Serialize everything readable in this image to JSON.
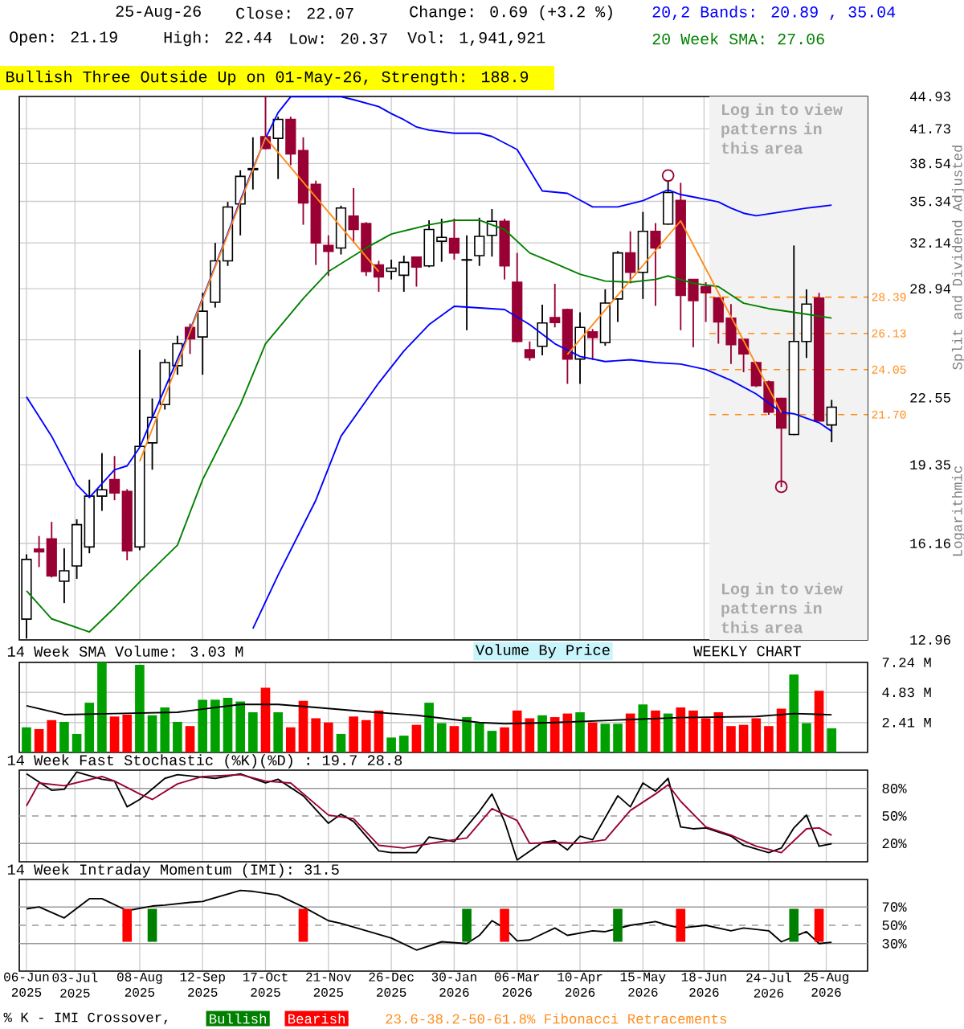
{
  "chart_data": [
    {
      "type": "candlestick",
      "title": "Bullish Three Outside Up on 01-May-26, Strength: 188.9",
      "annotations": [
        "25-Aug-26",
        "Close: 22.07",
        "Change: 0.69 (+3.2 %)",
        "Open: 21.19",
        "High: 22.44",
        "Low: 20.37",
        "Vol: 1,941,921",
        "20,2 Bands: 20.89 , 35.04",
        "20 Week SMA: 27.06",
        "Split and Dividend Adjusted",
        "Logarithmic"
      ],
      "x": [
        "2025-06-06",
        "2025-06-13",
        "2025-06-20",
        "2025-06-27",
        "2025-07-04",
        "2025-07-11",
        "2025-07-18",
        "2025-07-25",
        "2025-08-01",
        "2025-08-08",
        "2025-08-15",
        "2025-08-22",
        "2025-08-29",
        "2025-09-05",
        "2025-09-12",
        "2025-09-19",
        "2025-09-26",
        "2025-10-03",
        "2025-10-10",
        "2025-10-17",
        "2025-10-24",
        "2025-10-31",
        "2025-11-07",
        "2025-11-14",
        "2025-11-21",
        "2025-11-28",
        "2025-12-05",
        "2025-12-12",
        "2025-12-19",
        "2025-12-26",
        "2026-01-02",
        "2026-01-09",
        "2026-01-16",
        "2026-01-23",
        "2026-01-30",
        "2026-02-06",
        "2026-02-13",
        "2026-02-20",
        "2026-02-27",
        "2026-03-06",
        "2026-03-13",
        "2026-03-20",
        "2026-03-27",
        "2026-04-03",
        "2026-04-10",
        "2026-04-17",
        "2026-04-24",
        "2026-05-01",
        "2026-05-08",
        "2026-05-15",
        "2026-05-22",
        "2026-05-29",
        "2026-06-05",
        "2026-06-12",
        "2026-06-19",
        "2026-06-26",
        "2026-07-03",
        "2026-07-10",
        "2026-07-17",
        "2026-07-24",
        "2026-07-31",
        "2026-08-07",
        "2026-08-14",
        "2026-08-21",
        "2026-08-28"
      ],
      "ohlc": [
        [
          13.59,
          15.76,
          13.0,
          15.58
        ],
        [
          15.95,
          16.44,
          15.31,
          15.85
        ],
        [
          16.33,
          16.98,
          14.95,
          15.0
        ],
        [
          14.82,
          15.98,
          14.1,
          15.18
        ],
        [
          15.35,
          17.08,
          14.9,
          16.87
        ],
        [
          16.03,
          18.7,
          15.8,
          18.01
        ],
        [
          18.01,
          19.87,
          17.41,
          18.27
        ],
        [
          18.7,
          19.74,
          17.84,
          18.14
        ],
        [
          18.2,
          18.3,
          15.55,
          15.89
        ],
        [
          16.03,
          25.17,
          15.91,
          20.18
        ],
        [
          20.34,
          22.52,
          19.13,
          21.56
        ],
        [
          22.2,
          24.64,
          21.95,
          24.44
        ],
        [
          24.27,
          25.99,
          23.77,
          25.52
        ],
        [
          26.49,
          26.72,
          24.93,
          25.81
        ],
        [
          25.92,
          28.67,
          23.77,
          27.49
        ],
        [
          28.06,
          32.14,
          27.72,
          30.85
        ],
        [
          30.85,
          35.3,
          30.49,
          34.89
        ],
        [
          35.13,
          37.96,
          32.7,
          37.43
        ],
        [
          38.0,
          40.92,
          36.32,
          38.1
        ],
        [
          40.97,
          44.9,
          39.8,
          39.9
        ],
        [
          40.82,
          42.9,
          37.2,
          42.64
        ],
        [
          42.64,
          42.9,
          38.4,
          39.4
        ],
        [
          39.7,
          40.92,
          33.5,
          35.22
        ],
        [
          36.75,
          37.06,
          30.56,
          32.14
        ],
        [
          31.95,
          32.7,
          29.8,
          31.52
        ],
        [
          31.77,
          35.0,
          31.3,
          34.81
        ],
        [
          34.18,
          36.44,
          32.14,
          33.14
        ],
        [
          33.6,
          33.7,
          29.8,
          30.1
        ],
        [
          30.56,
          30.85,
          28.74,
          29.74
        ],
        [
          30.12,
          30.93,
          29.56,
          30.34
        ],
        [
          29.85,
          31.22,
          28.74,
          30.74
        ],
        [
          31.11,
          31.15,
          29.08,
          30.41
        ],
        [
          30.49,
          33.85,
          30.4,
          33.14
        ],
        [
          32.26,
          33.97,
          30.78,
          32.55
        ],
        [
          32.47,
          33.97,
          30.93,
          31.41
        ],
        [
          30.9,
          32.7,
          26.32,
          30.93
        ],
        [
          31.22,
          34.05,
          30.49,
          32.63
        ],
        [
          32.7,
          34.73,
          31.15,
          33.77
        ],
        [
          33.77,
          33.97,
          29.56,
          30.49
        ],
        [
          29.38,
          31.41,
          25.6,
          25.65
        ],
        [
          25.17,
          25.65,
          24.55,
          24.73
        ],
        [
          25.37,
          27.9,
          24.85,
          26.76
        ],
        [
          27.09,
          29.27,
          26.49,
          26.79
        ],
        [
          27.59,
          27.65,
          23.28,
          24.64
        ],
        [
          24.64,
          27.42,
          23.28,
          26.49
        ],
        [
          26.22,
          26.39,
          24.59,
          25.88
        ],
        [
          25.58,
          28.9,
          25.4,
          28.01
        ],
        [
          28.27,
          31.55,
          26.82,
          31.41
        ],
        [
          31.41,
          33.0,
          29.3,
          30.05
        ],
        [
          30.05,
          34.5,
          28.27,
          33.0
        ],
        [
          33.0,
          33.64,
          27.83,
          31.77
        ],
        [
          33.55,
          37.06,
          33.5,
          36.07
        ],
        [
          35.42,
          36.88,
          26.32,
          28.5
        ],
        [
          29.56,
          29.6,
          25.31,
          28.17
        ],
        [
          29.08,
          29.38,
          26.82,
          28.67
        ],
        [
          28.33,
          28.4,
          25.52,
          26.82
        ],
        [
          27.05,
          27.94,
          24.36,
          25.46
        ],
        [
          25.78,
          25.8,
          23.91,
          24.93
        ],
        [
          24.44,
          24.5,
          23.11,
          23.19
        ],
        [
          23.39,
          23.45,
          21.69,
          21.82
        ],
        [
          22.52,
          22.55,
          18.38,
          21.04
        ],
        [
          20.73,
          31.95,
          20.7,
          25.65
        ],
        [
          25.65,
          28.9,
          24.7,
          27.94
        ],
        [
          28.33,
          28.67,
          21.38,
          21.38
        ],
        [
          21.19,
          22.44,
          20.37,
          22.07
        ]
      ],
      "series": [
        {
          "type": "line",
          "color": "#0000ff",
          "x": [
            "2025-06-06",
            "2025-06-20",
            "2025-07-04",
            "2025-07-11",
            "2025-07-25",
            "2025-08-01",
            "2025-08-08",
            "2025-08-22",
            "2025-09-05",
            "2025-09-19",
            "2025-10-03",
            "2025-10-10",
            "2025-10-17",
            "2025-10-24",
            "2025-10-31",
            "2025-11-07",
            "2025-11-14",
            "2025-11-21",
            "2025-11-28",
            "2025-12-05",
            "2025-12-19",
            "2025-12-26",
            "2026-01-02",
            "2026-01-09",
            "2026-01-16",
            "2026-01-30",
            "2026-02-13",
            "2026-02-20",
            "2026-03-06",
            "2026-03-20",
            "2026-04-03",
            "2026-04-17",
            "2026-05-01",
            "2026-05-15",
            "2026-05-29",
            "2026-06-05",
            "2026-06-12",
            "2026-06-26",
            "2026-07-03",
            "2026-07-10",
            "2026-07-17",
            "2026-07-31",
            "2026-08-14",
            "2026-08-28"
          ],
          "values": [
            22.6,
            20.65,
            18.49,
            17.95,
            19.13,
            19.3,
            20.13,
            23.04,
            26.32,
            30.49,
            35.42,
            38.1,
            40.82,
            43.3,
            44.9,
            44.9,
            44.9,
            44.9,
            44.9,
            44.6,
            43.9,
            43.2,
            42.6,
            41.9,
            41.6,
            41.3,
            41.3,
            41.0,
            39.8,
            36.2,
            36.0,
            34.9,
            34.9,
            35.4,
            36.3,
            35.9,
            35.7,
            35.3,
            34.8,
            34.4,
            34.2,
            34.5,
            34.8,
            35.04
          ]
        },
        {
          "type": "line",
          "color": "#0000ff",
          "x": [
            "2025-10-10",
            "2025-10-24",
            "2025-11-14",
            "2025-11-28",
            "2025-12-19",
            "2026-01-02",
            "2026-01-16",
            "2026-01-30",
            "2026-02-13",
            "2026-02-27",
            "2026-03-13",
            "2026-03-27",
            "2026-04-10",
            "2026-04-24",
            "2026-05-08",
            "2026-05-22",
            "2026-06-05",
            "2026-06-19",
            "2026-07-03",
            "2026-07-17",
            "2026-07-31",
            "2026-08-07",
            "2026-08-21",
            "2026-08-28"
          ],
          "values": [
            13.3,
            15.03,
            17.84,
            20.65,
            23.33,
            25.1,
            26.66,
            27.8,
            27.7,
            27.6,
            26.66,
            25.52,
            24.79,
            24.5,
            24.6,
            24.44,
            24.36,
            24.06,
            23.47,
            22.75,
            21.82,
            21.74,
            21.3,
            20.89
          ]
        },
        {
          "type": "line",
          "color": "#008000",
          "x": [
            "2025-06-06",
            "2025-06-20",
            "2025-07-11",
            "2025-07-25",
            "2025-08-08",
            "2025-08-29",
            "2025-09-12",
            "2025-10-03",
            "2025-10-17",
            "2025-11-07",
            "2025-11-21",
            "2025-12-12",
            "2025-12-26",
            "2026-01-16",
            "2026-01-30",
            "2026-02-13",
            "2026-02-27",
            "2026-03-13",
            "2026-03-27",
            "2026-04-10",
            "2026-04-24",
            "2026-05-08",
            "2026-05-22",
            "2026-05-29",
            "2026-06-12",
            "2026-06-26",
            "2026-07-10",
            "2026-07-24",
            "2026-08-07",
            "2026-08-28"
          ],
          "values": [
            14.5,
            13.6,
            13.2,
            13.95,
            14.8,
            16.1,
            18.7,
            22.2,
            25.52,
            28.3,
            30.1,
            31.77,
            32.8,
            33.5,
            33.85,
            33.85,
            33.14,
            31.41,
            30.67,
            29.92,
            29.45,
            29.38,
            29.56,
            29.8,
            29.3,
            29.08,
            28.0,
            27.65,
            27.42,
            27.06
          ]
        },
        {
          "type": "line",
          "color": "#ff8c1a",
          "x": [
            "2025-08-08",
            "2025-10-17",
            "2025-12-19",
            "2026-02-13",
            "2026-04-03",
            "2026-06-05",
            "2026-07-31"
          ],
          "values": [
            19.5,
            40.9,
            30.1,
            null,
            24.9,
            33.8,
            21.8
          ]
        },
        {
          "type": "scatter",
          "color": "#990033",
          "marker": "circle",
          "x": [
            "2026-05-29",
            "2026-07-31"
          ],
          "values": [
            37.5,
            18.4
          ]
        }
      ],
      "xlim": [
        "2025-06-02",
        "2026-09-17"
      ],
      "ylim": [
        12.96,
        44.93
      ],
      "log": true,
      "grid": true,
      "tick_labels": "y",
      "xticks": [
        {
          "value": "2025-06-06",
          "label": null
        },
        {
          "value": "2025-07-03",
          "label": null
        },
        {
          "value": "2025-08-08",
          "label": null
        },
        {
          "value": "2025-09-12",
          "label": null
        },
        {
          "value": "2025-10-17",
          "label": null
        },
        {
          "value": "2025-11-21",
          "label": null
        },
        {
          "value": "2025-12-26",
          "label": null
        },
        {
          "value": "2026-01-30",
          "label": null
        },
        {
          "value": "2026-03-06",
          "label": null
        },
        {
          "value": "2026-04-10",
          "label": null
        },
        {
          "value": "2026-05-15",
          "label": null
        },
        {
          "value": "2026-06-18",
          "label": null
        },
        {
          "value": "2026-07-24",
          "label": null
        },
        {
          "value": "2026-08-25",
          "label": null
        }
      ],
      "yticks": [
        12.96,
        16.16,
        19.35,
        22.55,
        {
          "value": 25.75,
          "label": null
        },
        28.94,
        32.14,
        35.34,
        38.54,
        41.73,
        44.93
      ],
      "ref_lines": [
        {
          "axis": "y",
          "value": 28.39,
          "label": "28.39",
          "color": "#ff8c1a",
          "line_style": "dashed"
        },
        {
          "axis": "y",
          "value": 26.13,
          "label": "26.13",
          "color": "#ff8c1a",
          "line_style": "dashed"
        },
        {
          "axis": "y",
          "value": 24.05,
          "label": "24.05",
          "color": "#ff8c1a",
          "line_style": "dashed"
        },
        {
          "axis": "y",
          "value": 21.7,
          "label": "21.70",
          "color": "#ff8c1a",
          "line_style": "dashed"
        }
      ],
      "bands": [
        {
          "axis": "x",
          "from": "2026-06-21",
          "to": "2026-09-17",
          "label": "Log in to view patterns in this area",
          "color": "#f2f2f2"
        }
      ]
    },
    {
      "type": "bar",
      "title": "14 Week SMA Volume: 3.03 M",
      "annotations": [
        "Volume By Price",
        "WEEKLY CHART"
      ],
      "x": [
        "2025-06-06",
        "2025-06-13",
        "2025-06-20",
        "2025-06-27",
        "2025-07-04",
        "2025-07-11",
        "2025-07-18",
        "2025-07-25",
        "2025-08-01",
        "2025-08-08",
        "2025-08-15",
        "2025-08-22",
        "2025-08-29",
        "2025-09-05",
        "2025-09-12",
        "2025-09-19",
        "2025-09-26",
        "2025-10-03",
        "2025-10-10",
        "2025-10-17",
        "2025-10-24",
        "2025-10-31",
        "2025-11-07",
        "2025-11-14",
        "2025-11-21",
        "2025-11-28",
        "2025-12-05",
        "2025-12-12",
        "2025-12-19",
        "2025-12-26",
        "2026-01-02",
        "2026-01-09",
        "2026-01-16",
        "2026-01-23",
        "2026-01-30",
        "2026-02-06",
        "2026-02-13",
        "2026-02-20",
        "2026-02-27",
        "2026-03-06",
        "2026-03-13",
        "2026-03-20",
        "2026-03-27",
        "2026-04-03",
        "2026-04-10",
        "2026-04-17",
        "2026-04-24",
        "2026-05-01",
        "2026-05-08",
        "2026-05-15",
        "2026-05-22",
        "2026-05-29",
        "2026-06-05",
        "2026-06-12",
        "2026-06-19",
        "2026-06-26",
        "2026-07-03",
        "2026-07-10",
        "2026-07-17",
        "2026-07-24",
        "2026-07-31",
        "2026-08-07",
        "2026-08-14",
        "2026-08-21",
        "2026-08-28"
      ],
      "series": [
        {
          "type": "bar",
          "values": [
            2.02,
            1.88,
            2.6,
            2.46,
            1.49,
            4.0,
            7.24,
            2.89,
            3.04,
            7.04,
            2.99,
            3.62,
            2.46,
            2.12,
            4.24,
            4.24,
            4.39,
            4.1,
            3.23,
            5.21,
            3.23,
            2.02,
            4.15,
            2.75,
            2.41,
            1.49,
            2.89,
            2.6,
            3.37,
            1.2,
            1.35,
            2.22,
            4.0,
            2.36,
            2.12,
            2.84,
            2.36,
            1.74,
            2.02,
            3.37,
            2.75,
            2.99,
            2.84,
            3.13,
            3.23,
            2.41,
            2.31,
            2.31,
            3.13,
            3.86,
            3.37,
            3.13,
            3.62,
            3.37,
            2.75,
            3.23,
            2.12,
            2.22,
            2.75,
            2.12,
            3.52,
            6.27,
            2.36,
            4.96,
            1.94
          ],
          "colors": [
            "#00a000",
            "#ff0000",
            "#ff0000",
            "#00a000",
            "#00a000",
            "#00a000",
            "#00a000",
            "#ff0000",
            "#ff0000",
            "#00a000",
            "#00a000",
            "#00a000",
            "#00a000",
            "#ff0000",
            "#00a000",
            "#00a000",
            "#00a000",
            "#00a000",
            "#00a000",
            "#ff0000",
            "#00a000",
            "#ff0000",
            "#ff0000",
            "#ff0000",
            "#ff0000",
            "#00a000",
            "#ff0000",
            "#ff0000",
            "#ff0000",
            "#00a000",
            "#00a000",
            "#ff0000",
            "#00a000",
            "#00a000",
            "#ff0000",
            "#00a000",
            "#00a000",
            "#00a000",
            "#ff0000",
            "#ff0000",
            "#ff0000",
            "#00a000",
            "#ff0000",
            "#ff0000",
            "#00a000",
            "#ff0000",
            "#00a000",
            "#00a000",
            "#ff0000",
            "#00a000",
            "#ff0000",
            "#00a000",
            "#ff0000",
            "#ff0000",
            "#ff0000",
            "#ff0000",
            "#ff0000",
            "#ff0000",
            "#ff0000",
            "#ff0000",
            "#ff0000",
            "#00a000",
            "#00a000",
            "#ff0000",
            "#00a000"
          ]
        },
        {
          "type": "line",
          "color": "#000000",
          "x": [
            "2025-06-06",
            "2025-06-27",
            "2025-07-25",
            "2025-08-29",
            "2025-10-03",
            "2025-10-24",
            "2025-11-14",
            "2025-12-12",
            "2026-01-09",
            "2026-02-13",
            "2026-02-27",
            "2026-03-27",
            "2026-05-08",
            "2026-06-05",
            "2026-07-17",
            "2026-08-07",
            "2026-08-28"
          ],
          "values": [
            3.76,
            3.04,
            3.13,
            3.23,
            3.86,
            3.86,
            3.62,
            3.28,
            2.99,
            2.41,
            2.31,
            2.41,
            2.65,
            2.8,
            2.89,
            3.13,
            3.03
          ]
        }
      ],
      "xlim": [
        "2025-06-02",
        "2026-09-17"
      ],
      "ylim": [
        0,
        7.24
      ],
      "grid": true,
      "tick_labels": "y",
      "xticks": [
        {
          "value": "2025-06-06",
          "label": null
        },
        {
          "value": "2025-07-03",
          "label": null
        },
        {
          "value": "2025-08-08",
          "label": null
        },
        {
          "value": "2025-09-12",
          "label": null
        },
        {
          "value": "2025-10-17",
          "label": null
        },
        {
          "value": "2025-11-21",
          "label": null
        },
        {
          "value": "2025-12-26",
          "label": null
        },
        {
          "value": "2026-01-30",
          "label": null
        },
        {
          "value": "2026-03-06",
          "label": null
        },
        {
          "value": "2026-04-10",
          "label": null
        },
        {
          "value": "2026-05-15",
          "label": null
        },
        {
          "value": "2026-06-18",
          "label": null
        },
        {
          "value": "2026-07-24",
          "label": null
        },
        {
          "value": "2026-08-25",
          "label": null
        }
      ],
      "yticks": [
        {
          "value": 2.41,
          "label": "2.41 M"
        },
        {
          "value": 4.83,
          "label": "4.83 M"
        },
        {
          "value": 7.24,
          "label": "7.24 M"
        }
      ]
    },
    {
      "type": "line",
      "title": "14 Week Fast Stochastic (%K)(%D) : 19.7 28.8",
      "series": [
        {
          "color": "#000000",
          "x": [
            "2025-06-06",
            "2025-06-20",
            "2025-06-27",
            "2025-07-04",
            "2025-07-18",
            "2025-07-25",
            "2025-08-01",
            "2025-08-08",
            "2025-08-22",
            "2025-08-29",
            "2025-09-19",
            "2025-10-03",
            "2025-10-17",
            "2025-10-24",
            "2025-11-07",
            "2025-11-21",
            "2025-11-28",
            "2025-12-05",
            "2025-12-19",
            "2025-12-26",
            "2026-01-09",
            "2026-01-16",
            "2026-01-30",
            "2026-02-13",
            "2026-02-20",
            "2026-02-27",
            "2026-03-06",
            "2026-03-20",
            "2026-03-27",
            "2026-04-03",
            "2026-04-10",
            "2026-04-17",
            "2026-05-01",
            "2026-05-08",
            "2026-05-15",
            "2026-05-22",
            "2026-05-29",
            "2026-06-05",
            "2026-06-12",
            "2026-06-19",
            "2026-07-03",
            "2026-07-10",
            "2026-07-24",
            "2026-07-31",
            "2026-08-07",
            "2026-08-14",
            "2026-08-21",
            "2026-08-28"
          ],
          "values": [
            96,
            78,
            79,
            98,
            90,
            88,
            60,
            68,
            91,
            95,
            91,
            96,
            86,
            90,
            72,
            42,
            52,
            44,
            12,
            10,
            10,
            27,
            22,
            55,
            74,
            44,
            2,
            21,
            23,
            13,
            28,
            24,
            72,
            60,
            86,
            77,
            91,
            38,
            36,
            37,
            28,
            18,
            10,
            15,
            37,
            51,
            17,
            19.7
          ]
        },
        {
          "color": "#990033",
          "x": [
            "2025-06-06",
            "2025-06-13",
            "2025-06-27",
            "2025-07-18",
            "2025-07-25",
            "2025-08-08",
            "2025-08-15",
            "2025-08-29",
            "2025-09-12",
            "2025-10-03",
            "2025-10-17",
            "2025-10-31",
            "2025-11-21",
            "2025-12-05",
            "2025-12-19",
            "2026-01-02",
            "2026-01-23",
            "2026-02-06",
            "2026-02-20",
            "2026-03-06",
            "2026-03-13",
            "2026-03-27",
            "2026-04-10",
            "2026-04-24",
            "2026-05-08",
            "2026-05-22",
            "2026-05-29",
            "2026-06-05",
            "2026-06-19",
            "2026-07-03",
            "2026-07-17",
            "2026-07-31",
            "2026-08-14",
            "2026-08-21",
            "2026-08-28"
          ],
          "values": [
            61,
            86,
            83,
            93,
            88,
            74,
            68,
            85,
            93,
            95,
            88,
            86,
            51,
            47,
            18,
            15,
            22,
            26,
            58,
            45,
            20,
            21,
            20,
            24,
            56,
            74,
            84,
            66,
            38,
            29,
            17,
            10,
            36,
            37,
            28.8
          ]
        }
      ],
      "xlim": [
        "2025-06-02",
        "2026-09-17"
      ],
      "ylim": [
        0,
        100
      ],
      "grid": "x",
      "tick_labels": "y",
      "xticks": [
        {
          "value": "2025-06-06",
          "label": null
        },
        {
          "value": "2025-07-03",
          "label": null
        },
        {
          "value": "2025-08-08",
          "label": null
        },
        {
          "value": "2025-09-12",
          "label": null
        },
        {
          "value": "2025-10-17",
          "label": null
        },
        {
          "value": "2025-11-21",
          "label": null
        },
        {
          "value": "2025-12-26",
          "label": null
        },
        {
          "value": "2026-01-30",
          "label": null
        },
        {
          "value": "2026-03-06",
          "label": null
        },
        {
          "value": "2026-04-10",
          "label": null
        },
        {
          "value": "2026-05-15",
          "label": null
        },
        {
          "value": "2026-06-18",
          "label": null
        },
        {
          "value": "2026-07-24",
          "label": null
        },
        {
          "value": "2026-08-25",
          "label": null
        }
      ],
      "yticks": [
        {
          "value": 20,
          "label": "20%"
        },
        {
          "value": 50,
          "label": "50%"
        },
        {
          "value": 80,
          "label": "80%"
        }
      ],
      "ref_lines": [
        {
          "axis": "y",
          "value": 80,
          "color": "#999999",
          "line_style": "solid"
        },
        {
          "axis": "y",
          "value": 50,
          "color": "#999999",
          "line_style": "dashed"
        },
        {
          "axis": "y",
          "value": 20,
          "color": "#999999",
          "line_style": "solid"
        }
      ]
    },
    {
      "type": "line",
      "title": "14 Week Intraday Momentum (IMI): 31.5",
      "annotations": [
        "23.6-38.2-50-61.8% Fibonacci Retracements"
      ],
      "legend": "bottom",
      "legend_title": "% K - IMI Crossover,",
      "series": [
        {
          "color": "#000000",
          "x": [
            "2025-06-06",
            "2025-06-13",
            "2025-06-27",
            "2025-07-11",
            "2025-07-18",
            "2025-08-01",
            "2025-08-15",
            "2025-08-22",
            "2025-09-05",
            "2025-09-12",
            "2025-10-03",
            "2025-10-10",
            "2025-10-24",
            "2025-11-07",
            "2025-11-21",
            "2025-11-28",
            "2025-12-12",
            "2025-12-26",
            "2026-01-09",
            "2026-01-23",
            "2026-02-06",
            "2026-02-13",
            "2026-02-20",
            "2026-02-27",
            "2026-03-06",
            "2026-03-13",
            "2026-03-27",
            "2026-04-03",
            "2026-04-17",
            "2026-04-24",
            "2026-05-08",
            "2026-05-22",
            "2026-05-29",
            "2026-06-05",
            "2026-06-19",
            "2026-07-03",
            "2026-07-10",
            "2026-07-24",
            "2026-07-31",
            "2026-08-14",
            "2026-08-21",
            "2026-08-28"
          ],
          "values": [
            68,
            70,
            58,
            79,
            79,
            66,
            71,
            72,
            75,
            76,
            88,
            87,
            83,
            70,
            55,
            52,
            44,
            36,
            23,
            32,
            30,
            39,
            55,
            47,
            33,
            34,
            47,
            39,
            44,
            43,
            50,
            54,
            50,
            47,
            50,
            44,
            47,
            44,
            32,
            43,
            30,
            31.5
          ]
        },
        {
          "name": "Bullish",
          "type": "bar",
          "color": "#008000",
          "x": [
            "2025-08-15",
            "2026-02-06",
            "2026-05-01",
            "2026-08-07"
          ],
          "base": [
            32,
            32,
            32,
            32
          ],
          "values": [
            36,
            36,
            36,
            36
          ]
        },
        {
          "name": "Bearish",
          "type": "bar",
          "color": "#ff0000",
          "x": [
            "2025-08-01",
            "2025-11-07",
            "2026-02-27",
            "2026-06-05",
            "2026-08-21"
          ],
          "base": [
            32,
            32,
            32,
            32,
            32
          ],
          "values": [
            36,
            36,
            36,
            36,
            36
          ]
        }
      ],
      "xlim": [
        "2025-06-02",
        "2026-09-17"
      ],
      "ylim": [
        0,
        100
      ],
      "grid": "x",
      "xticks": [
        {
          "value": "2025-06-06",
          "label": "06-Jun 2025"
        },
        {
          "value": "2025-07-03",
          "label": "03-Jul 2025"
        },
        {
          "value": "2025-08-08",
          "label": "08-Aug 2025"
        },
        {
          "value": "2025-09-12",
          "label": "12-Sep 2025"
        },
        {
          "value": "2025-10-17",
          "label": "17-Oct 2025"
        },
        {
          "value": "2025-11-21",
          "label": "21-Nov 2025"
        },
        {
          "value": "2025-12-26",
          "label": "26-Dec 2025"
        },
        {
          "value": "2026-01-30",
          "label": "30-Jan 2026"
        },
        {
          "value": "2026-03-06",
          "label": "06-Mar 2026"
        },
        {
          "value": "2026-04-10",
          "label": "10-Apr 2026"
        },
        {
          "value": "2026-05-15",
          "label": "15-May 2026"
        },
        {
          "value": "2026-06-18",
          "label": "18-Jun 2026"
        },
        {
          "value": "2026-07-24",
          "label": "24-Jul 2026"
        },
        {
          "value": "2026-08-25",
          "label": "25-Aug 2026"
        }
      ],
      "yticks": [
        {
          "value": 30,
          "label": "30%"
        },
        {
          "value": 50,
          "label": "50%"
        },
        {
          "value": 70,
          "label": "70%"
        }
      ],
      "ref_lines": [
        {
          "axis": "y",
          "value": 70,
          "color": "#999999",
          "line_style": "solid"
        },
        {
          "axis": "y",
          "value": 50,
          "color": "#999999",
          "line_style": "dashed"
        },
        {
          "axis": "y",
          "value": 30,
          "color": "#999999",
          "line_style": "solid"
        }
      ]
    }
  ]
}
